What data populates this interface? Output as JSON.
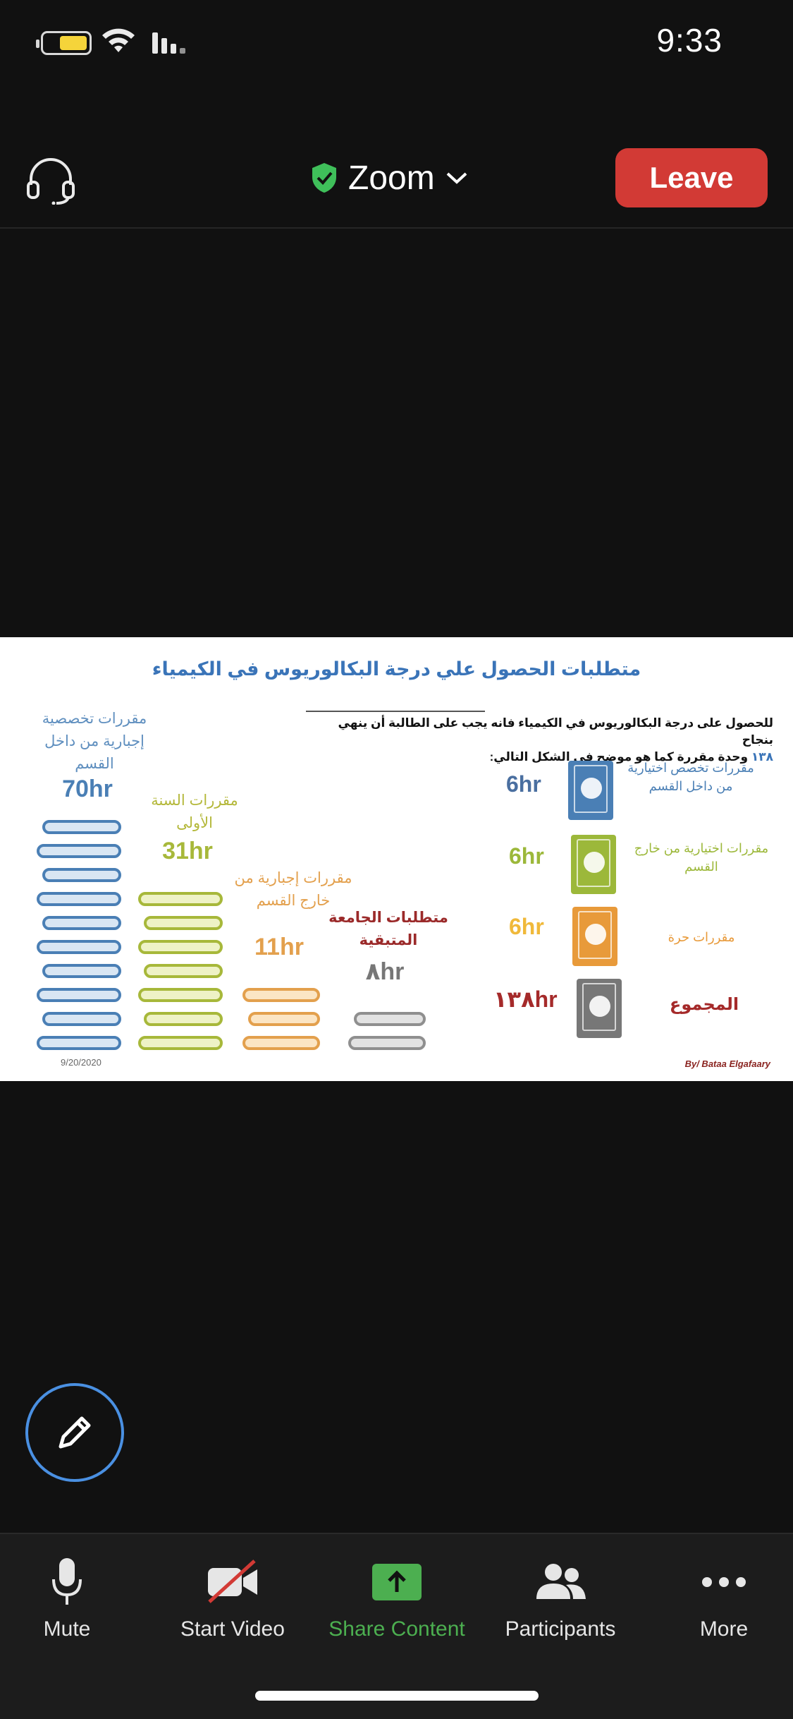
{
  "status_bar": {
    "time": "9:33",
    "battery_icon": "battery-icon",
    "wifi_icon": "wifi-icon",
    "signal_icon": "signal-icon",
    "battery_color": "#f5d43a"
  },
  "header": {
    "audio_icon": "headset-icon",
    "meeting_title": "Zoom",
    "secure_icon": "shield-check-icon",
    "dropdown_icon": "chevron-down-icon",
    "leave_label": "Leave",
    "leave_color": "#d23a35"
  },
  "slide": {
    "title": "متطلبات الحصول علي درجة البكالوريوس في الكيمياء",
    "intro_line1": "للحصول على درجة البكالوريوس في الكيمياء فانه يجب على الطالبة أن ينهي بنجاح",
    "intro_num": "١٣٨",
    "intro_line2": "وحدة مقررة كما هو موضح في الشكل التالي:",
    "columns": [
      {
        "label": "مقررات تخصصية إجبارية من داخل القسم",
        "hours": "70hr",
        "color": "#4a7fb5"
      },
      {
        "label": "مقررات السنة الأولى",
        "hours": "31hr",
        "color": "#a7b83a"
      },
      {
        "label": "مقررات إجبارية من خارج القسم",
        "hours": "11hr",
        "color": "#e3a04d"
      },
      {
        "label": "متطلبات الجامعة المتبقية",
        "hours": "٨hr",
        "color": "#9b2a2a"
      }
    ],
    "legend": [
      {
        "label": "مقررات تخصص اختيارية من داخل القسم",
        "hours": "6hr",
        "color": "#4a7fb5",
        "icon": "flask-book-icon"
      },
      {
        "label": "مقررات اختيارية من خارج القسم",
        "hours": "6hr",
        "color": "#9cb83a",
        "icon": "leaf-book-icon"
      },
      {
        "label": "مقررات حرة",
        "hours": "6hr",
        "color": "#e89a3a",
        "icon": "fist-book-icon"
      },
      {
        "label": "المجموع",
        "hours": "١٣٨hr",
        "color": "#a52a2a",
        "icon": "palette-book-icon"
      }
    ],
    "date": "9/20/2020",
    "author": "By/ Bataa Elgafaary"
  },
  "annotate": {
    "icon": "pencil-icon"
  },
  "toolbar": {
    "items": [
      {
        "label": "Mute",
        "icon": "microphone-icon"
      },
      {
        "label": "Start Video",
        "icon": "video-off-icon"
      },
      {
        "label": "Share Content",
        "icon": "share-screen-icon"
      },
      {
        "label": "Participants",
        "icon": "participants-icon"
      },
      {
        "label": "More",
        "icon": "more-dots-icon"
      }
    ],
    "share_color": "#4caf50"
  }
}
